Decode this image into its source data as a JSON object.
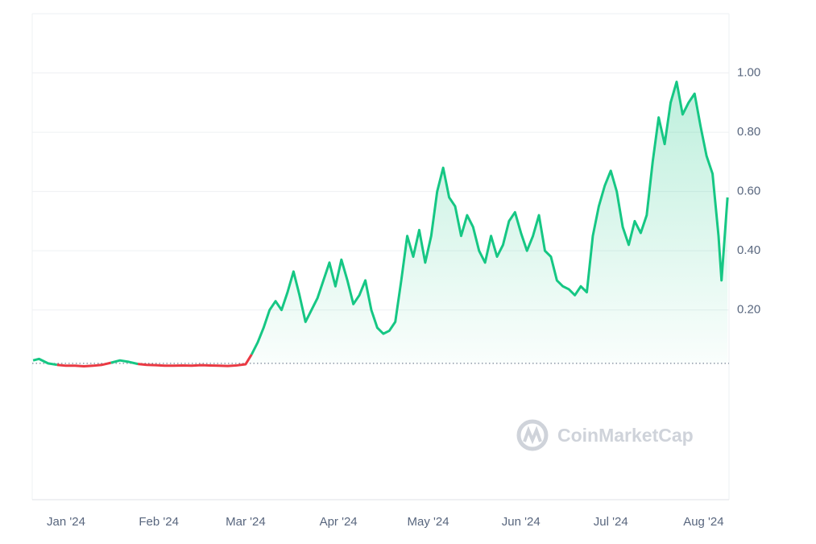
{
  "chart_data": {
    "type": "line",
    "watermark": "CoinMarketCap",
    "x": [
      -11,
      -9,
      -6,
      -3,
      0,
      3,
      6,
      9,
      12,
      15,
      18,
      21,
      24,
      27,
      30,
      33,
      36,
      39,
      42,
      45,
      48,
      51,
      54,
      57,
      60,
      62,
      64,
      66,
      68,
      70,
      72,
      74,
      76,
      78,
      80,
      82,
      84,
      86,
      88,
      90,
      92,
      94,
      96,
      98,
      100,
      102,
      104,
      106,
      108,
      110,
      112,
      114,
      116,
      118,
      120,
      122,
      124,
      126,
      128,
      130,
      132,
      134,
      136,
      138,
      140,
      142,
      144,
      146,
      148,
      150,
      152,
      154,
      156,
      158,
      160,
      162,
      164,
      166,
      168,
      170,
      172,
      174,
      176,
      178,
      180,
      182,
      184,
      186,
      188,
      190,
      192,
      194,
      196,
      198,
      200,
      202,
      204,
      206,
      208,
      210,
      212,
      214,
      216,
      218,
      219,
      220,
      221
    ],
    "values": [
      0.03,
      0.035,
      0.02,
      0.015,
      0.012,
      0.012,
      0.01,
      0.012,
      0.015,
      0.022,
      0.03,
      0.025,
      0.018,
      0.015,
      0.014,
      0.012,
      0.012,
      0.013,
      0.012,
      0.014,
      0.013,
      0.012,
      0.011,
      0.013,
      0.017,
      0.05,
      0.09,
      0.14,
      0.2,
      0.23,
      0.2,
      0.26,
      0.33,
      0.25,
      0.16,
      0.2,
      0.24,
      0.3,
      0.36,
      0.28,
      0.37,
      0.3,
      0.22,
      0.25,
      0.3,
      0.2,
      0.14,
      0.12,
      0.13,
      0.16,
      0.3,
      0.45,
      0.38,
      0.47,
      0.36,
      0.45,
      0.6,
      0.68,
      0.58,
      0.55,
      0.45,
      0.52,
      0.48,
      0.4,
      0.36,
      0.45,
      0.38,
      0.42,
      0.5,
      0.53,
      0.46,
      0.4,
      0.45,
      0.52,
      0.4,
      0.38,
      0.3,
      0.28,
      0.27,
      0.25,
      0.28,
      0.26,
      0.45,
      0.55,
      0.62,
      0.67,
      0.6,
      0.48,
      0.42,
      0.5,
      0.46,
      0.52,
      0.7,
      0.85,
      0.76,
      0.9,
      0.97,
      0.86,
      0.9,
      0.93,
      0.82,
      0.72,
      0.66,
      0.45,
      0.3,
      0.44,
      0.58
    ],
    "baseline": 0.02,
    "up_color": "#16c784",
    "down_color": "#ea3943",
    "xlim": [
      -11.3,
      221.5
    ],
    "xticks": [
      {
        "value": 0,
        "label": "Jan '24"
      },
      {
        "value": 31,
        "label": "Feb '24"
      },
      {
        "value": 60,
        "label": "Mar '24"
      },
      {
        "value": 91,
        "label": "Apr '24"
      },
      {
        "value": 121,
        "label": "May '24"
      },
      {
        "value": 152,
        "label": "Jun '24"
      },
      {
        "value": 182,
        "label": "Jul '24"
      },
      {
        "value": 213,
        "label": "Aug '24"
      }
    ],
    "ylim": [
      -0.44,
      1.2
    ],
    "yticks": [
      {
        "value": 0.2,
        "label": "0.20"
      },
      {
        "value": 0.4,
        "label": "0.40"
      },
      {
        "value": 0.6,
        "label": "0.60"
      },
      {
        "value": 0.8,
        "label": "0.80"
      },
      {
        "value": 1.0,
        "label": "1.00"
      }
    ],
    "grid": true
  }
}
